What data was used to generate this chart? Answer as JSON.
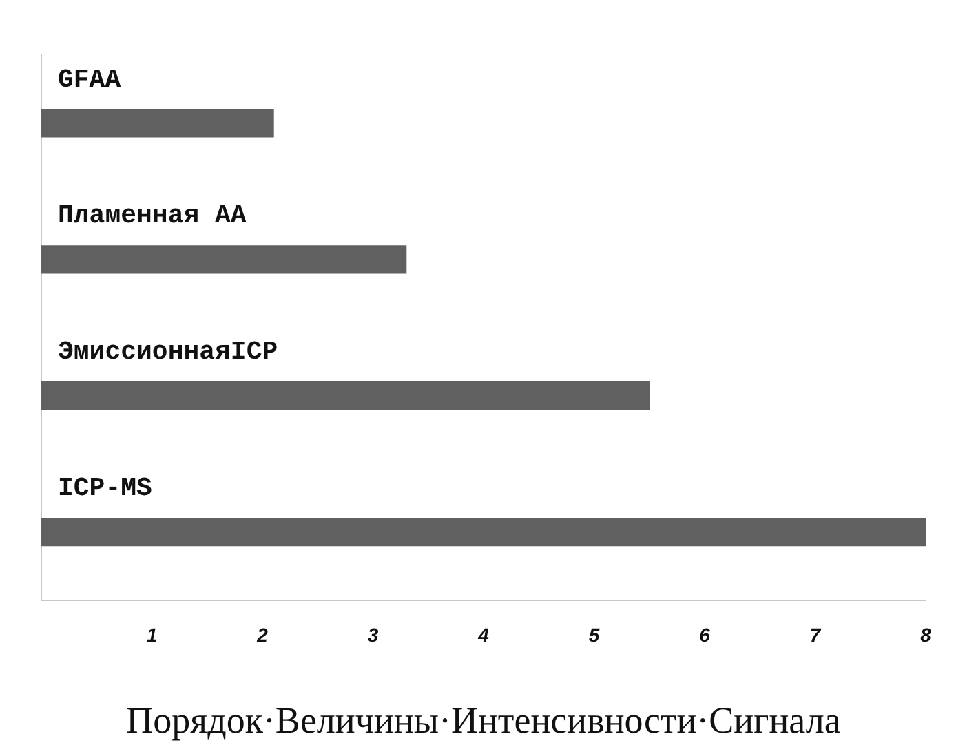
{
  "chart_data": {
    "type": "bar",
    "orientation": "horizontal",
    "xlabel": "Порядок·Величины·Интенсивности·Сигнала",
    "categories": [
      "GFAA",
      "Пламенная AA",
      "ЭмиссионнаяICP",
      "ICP-MS"
    ],
    "values": [
      2.1,
      3.3,
      5.5,
      8.0
    ],
    "color": "#606060",
    "xlim": [
      0,
      8
    ],
    "xticks": [
      1,
      2,
      3,
      4,
      5,
      6,
      7,
      8
    ],
    "grid": false
  }
}
